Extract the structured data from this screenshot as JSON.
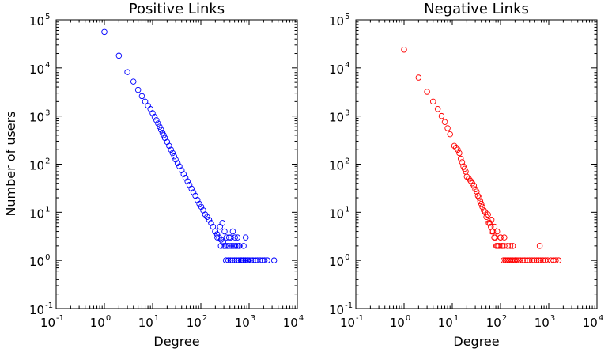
{
  "chart_data": [
    {
      "type": "scatter",
      "title": "Positive Links",
      "xlabel": "Degree",
      "ylabel": "Number of users",
      "xscale": "log",
      "yscale": "log",
      "xlim": [
        0.1,
        10000
      ],
      "ylim": [
        0.1,
        100000
      ],
      "tick_labels": [
        "10",
        "10"
      ],
      "tick_exponents": [
        "-1",
        "0",
        "1",
        "2",
        "3",
        "4",
        "5"
      ],
      "marker": "circle-open",
      "color": "#0000ff",
      "x": [
        1,
        2,
        3,
        4,
        5,
        6,
        7,
        8,
        9,
        10,
        11,
        12,
        13,
        14,
        15,
        16,
        17,
        18,
        20,
        22,
        24,
        26,
        28,
        30,
        33,
        36,
        40,
        44,
        48,
        53,
        58,
        64,
        70,
        77,
        85,
        93,
        102,
        112,
        123,
        135,
        148,
        163,
        179,
        197,
        217,
        239,
        263,
        290,
        320,
        350,
        385,
        425,
        470,
        520,
        575,
        635,
        700,
        770,
        850,
        940,
        200,
        220,
        250,
        280,
        310,
        340,
        380,
        420,
        460,
        510,
        560,
        620,
        680,
        750,
        830,
        920,
        1000,
        1100,
        1200,
        1350,
        1500,
        1700,
        1900,
        2100,
        2400,
        3300,
        260,
        300,
        330,
        370,
        410,
        450,
        500,
        550,
        610,
        680,
        760,
        850
      ],
      "y": [
        56000,
        18000,
        8200,
        5200,
        3500,
        2600,
        2000,
        1650,
        1400,
        1150,
        960,
        820,
        700,
        600,
        520,
        450,
        400,
        350,
        290,
        240,
        200,
        170,
        145,
        125,
        105,
        90,
        75,
        62,
        52,
        44,
        37,
        31,
        26,
        22,
        18,
        15,
        13,
        11,
        9,
        8,
        7,
        6,
        5,
        4,
        3.5,
        3,
        2.7,
        2.4,
        2,
        2,
        3,
        2,
        2,
        2,
        3,
        2,
        1,
        2,
        1,
        1,
        4,
        3,
        5,
        6,
        4,
        3,
        2,
        3,
        4,
        3,
        2,
        2,
        1,
        1,
        1,
        1,
        1,
        1,
        1,
        1,
        1,
        1,
        1,
        1,
        1,
        1,
        2,
        2,
        1,
        1,
        1,
        1,
        1,
        1,
        1,
        1,
        1,
        3
      ]
    },
    {
      "type": "scatter",
      "title": "Negative Links",
      "xlabel": "Degree",
      "ylabel": "",
      "xscale": "log",
      "yscale": "log",
      "xlim": [
        0.1,
        10000
      ],
      "ylim": [
        0.1,
        100000
      ],
      "tick_labels": [
        "10",
        "10"
      ],
      "tick_exponents": [
        "-1",
        "0",
        "1",
        "2",
        "3",
        "4",
        "5"
      ],
      "marker": "circle-open",
      "color": "#ff0000",
      "x": [
        1,
        2,
        3,
        4,
        5,
        6,
        7,
        8,
        9,
        11,
        12,
        13,
        14,
        15,
        16,
        17,
        18,
        19,
        20,
        22,
        24,
        26,
        28,
        30,
        32,
        34,
        36,
        38,
        40,
        42,
        45,
        48,
        51,
        54,
        57,
        60,
        63,
        66,
        70,
        74,
        78,
        82,
        86,
        90,
        95,
        100,
        105,
        110,
        115,
        120,
        125,
        130,
        140,
        150,
        160,
        170,
        180,
        200,
        220,
        240,
        260,
        290,
        320,
        360,
        400,
        450,
        500,
        560,
        620,
        680,
        760,
        850,
        950,
        1100,
        1250,
        1400,
        1600,
        55,
        65,
        75,
        85,
        100,
        120,
        140,
        160,
        180,
        200,
        650
      ],
      "y": [
        24000,
        6300,
        3200,
        2000,
        1400,
        1000,
        750,
        560,
        420,
        240,
        220,
        200,
        170,
        130,
        110,
        90,
        80,
        70,
        55,
        50,
        45,
        40,
        36,
        30,
        27,
        22,
        20,
        17,
        15,
        13,
        11,
        10,
        8,
        7,
        6,
        6,
        5,
        4,
        4,
        3,
        3,
        2,
        2,
        2,
        2,
        3,
        2,
        2,
        1,
        2,
        1,
        1,
        1,
        1,
        1,
        1,
        1,
        1,
        1,
        1,
        1,
        1,
        1,
        1,
        1,
        1,
        1,
        1,
        1,
        1,
        1,
        1,
        1,
        1,
        1,
        1,
        1,
        9,
        7,
        5,
        4,
        3,
        3,
        2,
        2,
        2,
        1,
        2
      ]
    }
  ]
}
